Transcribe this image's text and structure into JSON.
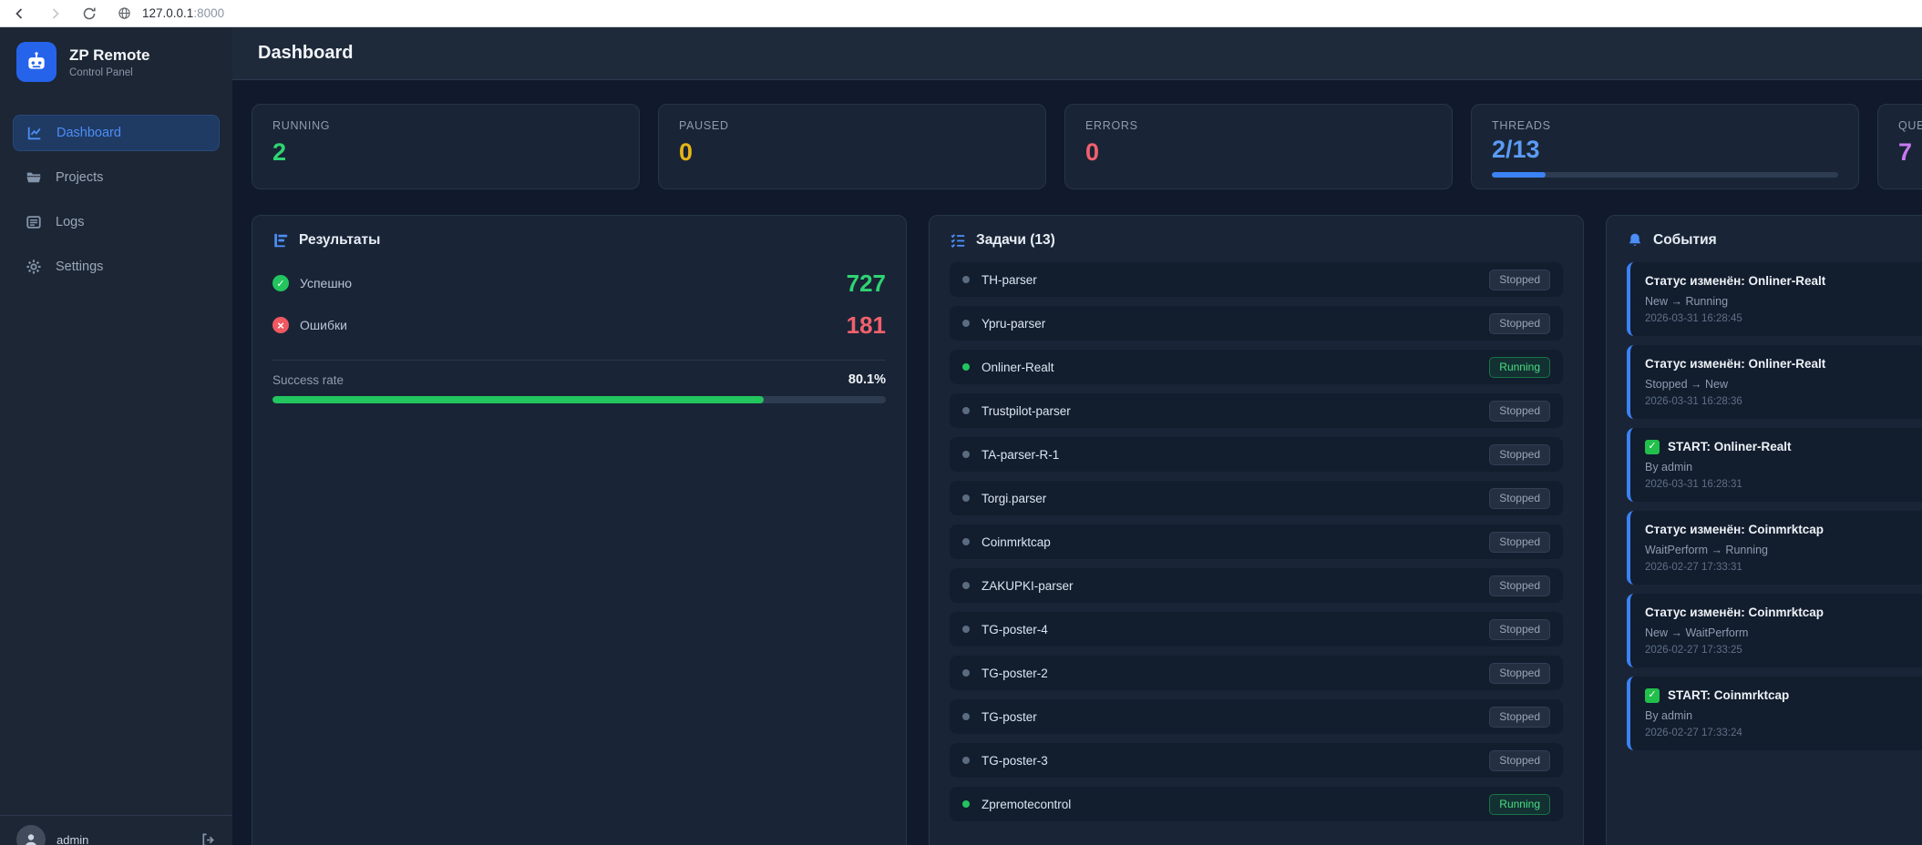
{
  "browser": {
    "url_host": "127.0.0.1",
    "url_port": ":8000"
  },
  "sidebar": {
    "app_name": "ZP Remote",
    "app_subtitle": "Control Panel",
    "items": [
      {
        "label": "Dashboard",
        "icon": "chart-line-icon",
        "active": true
      },
      {
        "label": "Projects",
        "icon": "folder-icon",
        "active": false
      },
      {
        "label": "Logs",
        "icon": "list-icon",
        "active": false
      },
      {
        "label": "Settings",
        "icon": "gear-icon",
        "active": false
      }
    ],
    "user": {
      "name": "admin"
    }
  },
  "header": {
    "title": "Dashboard"
  },
  "stats": [
    {
      "label": "RUNNING",
      "value": "2",
      "color": "#2fd472"
    },
    {
      "label": "PAUSED",
      "value": "0",
      "color": "#e7b416"
    },
    {
      "label": "ERRORS",
      "value": "0",
      "color": "#f2606d"
    },
    {
      "label": "THREADS",
      "value": "2/13",
      "color": "#5b9bf5",
      "progress_pct": 15.4
    },
    {
      "label": "QUEUE",
      "value": "7",
      "color": "#c879f2"
    }
  ],
  "results": {
    "title": "Результаты",
    "rows": [
      {
        "label": "Успешно",
        "value": "727",
        "icon": "check-circle-icon",
        "color": "#2fd472"
      },
      {
        "label": "Ошибки",
        "value": "181",
        "icon": "x-circle-icon",
        "color": "#f2606d"
      }
    ],
    "success_rate_label": "Success rate",
    "success_rate_value": "80.1%",
    "success_rate_pct": 80.1
  },
  "tasks": {
    "title": "Задачи (13)",
    "items": [
      {
        "name": "TH-parser",
        "status": "Stopped"
      },
      {
        "name": "Ypru-parser",
        "status": "Stopped"
      },
      {
        "name": "Onliner-Realt",
        "status": "Running"
      },
      {
        "name": "Trustpilot-parser",
        "status": "Stopped"
      },
      {
        "name": "TA-parser-R-1",
        "status": "Stopped"
      },
      {
        "name": "Torgi.parser",
        "status": "Stopped"
      },
      {
        "name": "Coinmrktcap",
        "status": "Stopped"
      },
      {
        "name": "ZAKUPKI-parser",
        "status": "Stopped"
      },
      {
        "name": "TG-poster-4",
        "status": "Stopped"
      },
      {
        "name": "TG-poster-2",
        "status": "Stopped"
      },
      {
        "name": "TG-poster",
        "status": "Stopped"
      },
      {
        "name": "TG-poster-3",
        "status": "Stopped"
      },
      {
        "name": "Zpremotecontrol",
        "status": "Running"
      }
    ]
  },
  "events": {
    "title": "События",
    "accent_color": "#3b82f6",
    "items": [
      {
        "title": "Статус изменён: Onliner-Realt",
        "detail": "New → Running",
        "timestamp": "2026-03-31 16:28:45"
      },
      {
        "title": "Статус изменён: Onliner-Realt",
        "detail": "Stopped → New",
        "timestamp": "2026-03-31 16:28:36"
      },
      {
        "title": "START: Onliner-Realt",
        "icon": "green-check-icon",
        "detail": "By admin",
        "timestamp": "2026-03-31 16:28:31"
      },
      {
        "title": "Статус изменён: Coinmrktcap",
        "detail": "WaitPerform → Running",
        "timestamp": "2026-02-27 17:33:31"
      },
      {
        "title": "Статус изменён: Coinmrktcap",
        "detail": "New → WaitPerform",
        "timestamp": "2026-02-27 17:33:25"
      },
      {
        "title": "START: Coinmrktcap",
        "icon": "green-check-icon",
        "detail": "By admin",
        "timestamp": "2026-02-27 17:33:24"
      }
    ]
  }
}
